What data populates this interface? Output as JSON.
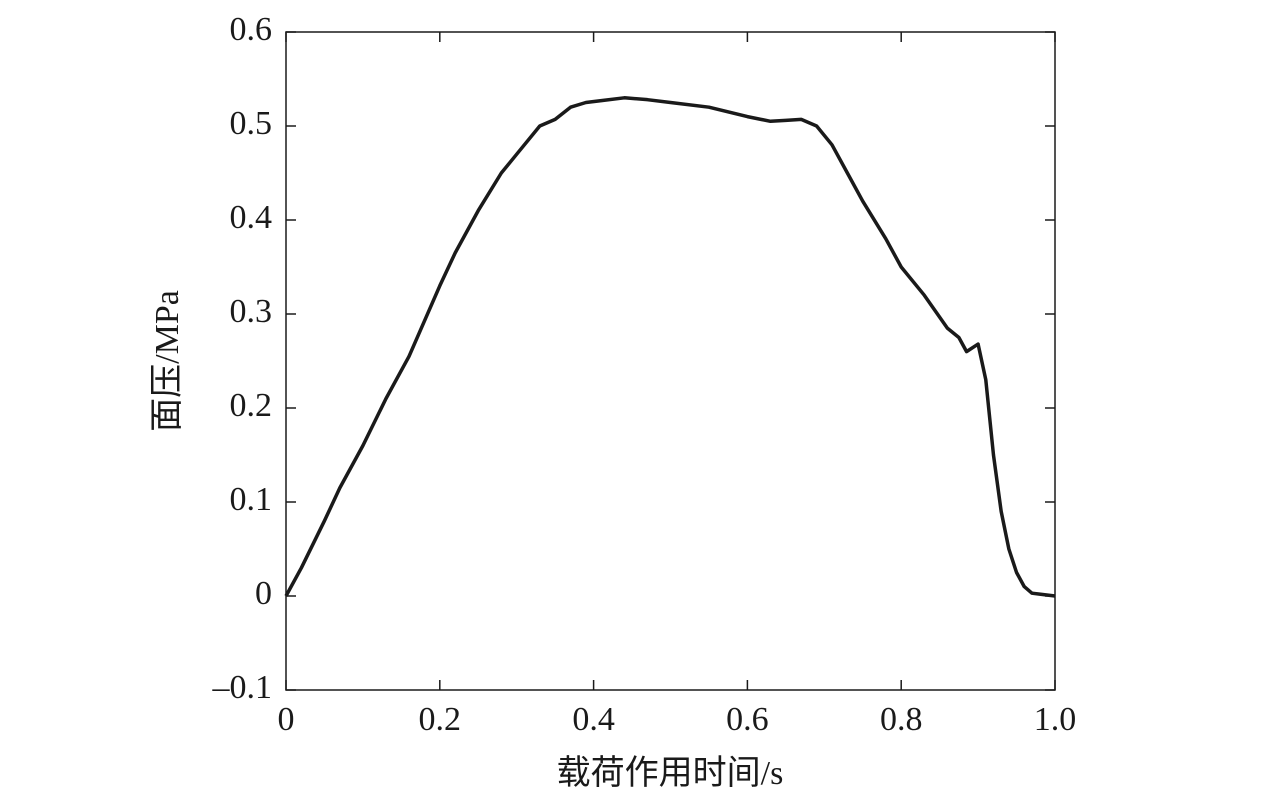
{
  "chart_data": {
    "type": "line",
    "x_label": "载荷作用时间/s",
    "y_label": "面压/MPa",
    "x": [
      0,
      0.02,
      0.05,
      0.07,
      0.1,
      0.13,
      0.16,
      0.2,
      0.22,
      0.25,
      0.28,
      0.3,
      0.33,
      0.35,
      0.37,
      0.39,
      0.41,
      0.44,
      0.47,
      0.5,
      0.55,
      0.6,
      0.63,
      0.65,
      0.67,
      0.69,
      0.71,
      0.73,
      0.75,
      0.78,
      0.8,
      0.83,
      0.86,
      0.875,
      0.885,
      0.9,
      0.91,
      0.92,
      0.93,
      0.94,
      0.95,
      0.96,
      0.97,
      0.98,
      1.0
    ],
    "series": [
      {
        "color": "#1a1a1a",
        "values": [
          0,
          0.03,
          0.08,
          0.115,
          0.16,
          0.21,
          0.255,
          0.33,
          0.365,
          0.41,
          0.45,
          0.47,
          0.5,
          0.507,
          0.52,
          0.525,
          0.527,
          0.53,
          0.528,
          0.525,
          0.52,
          0.51,
          0.505,
          0.506,
          0.507,
          0.5,
          0.48,
          0.45,
          0.42,
          0.38,
          0.35,
          0.32,
          0.285,
          0.275,
          0.26,
          0.268,
          0.23,
          0.15,
          0.09,
          0.05,
          0.025,
          0.01,
          0.003,
          0.002,
          0
        ]
      }
    ],
    "xlim": [
      0,
      1
    ],
    "ylim": [
      -0.1,
      0.6
    ],
    "xticks": [
      0,
      0.2,
      0.4,
      0.6,
      0.8,
      {
        "value": 1,
        "label": "1.0"
      }
    ],
    "yticks": [
      {
        "value": -0.1,
        "label": "–0.1"
      },
      0,
      0.1,
      0.2,
      0.3,
      0.4,
      0.5,
      0.6
    ]
  }
}
